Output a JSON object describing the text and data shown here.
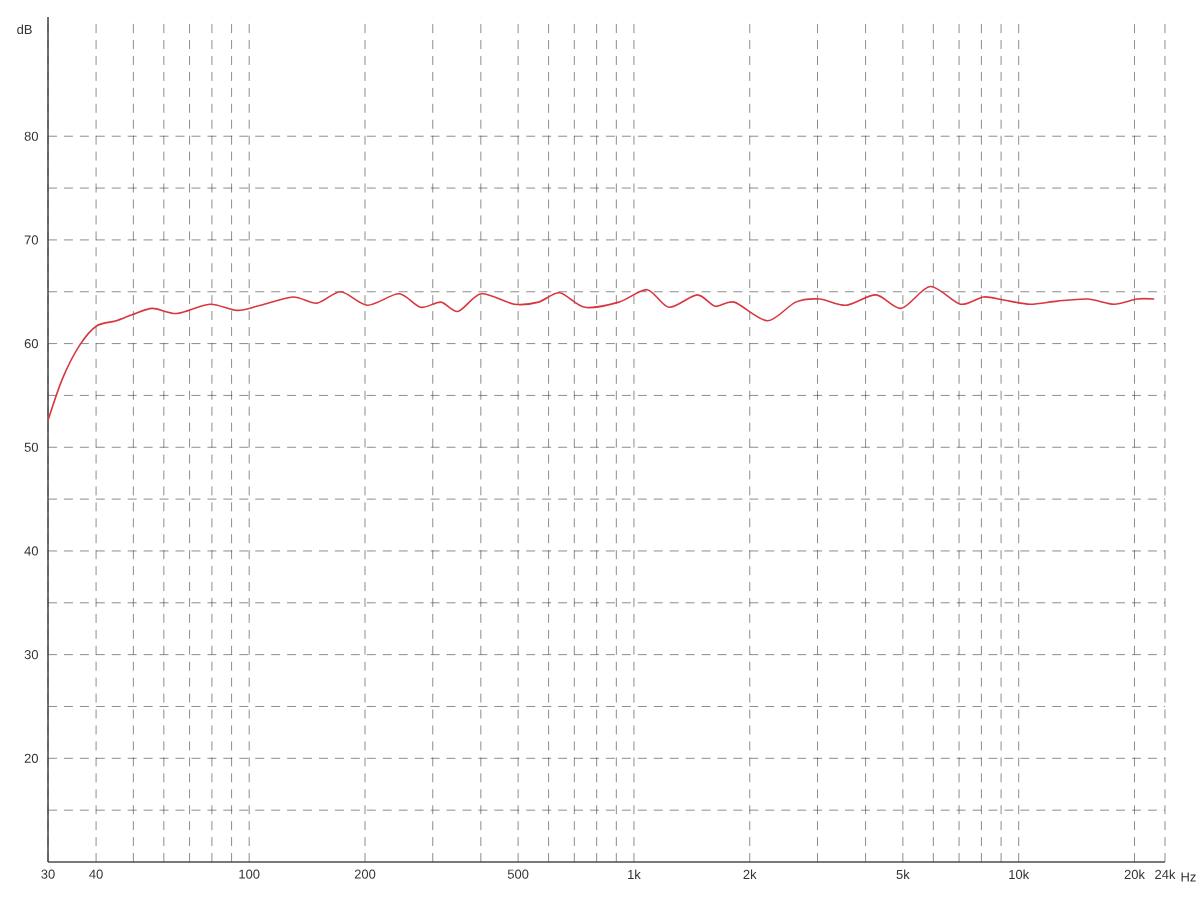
{
  "chart_data": {
    "type": "line",
    "xlabel": "Hz",
    "ylabel": "dB",
    "log": "x",
    "grid": true,
    "xlim": [
      30,
      24000
    ],
    "ylim": [
      10,
      91.5
    ],
    "xticks": [
      30,
      40,
      {
        "value": 50,
        "label": null
      },
      {
        "value": 60,
        "label": null
      },
      {
        "value": 70,
        "label": null
      },
      {
        "value": 80,
        "label": null
      },
      {
        "value": 90,
        "label": null
      },
      100,
      200,
      {
        "value": 300,
        "label": null
      },
      {
        "value": 400,
        "label": null
      },
      500,
      {
        "value": 600,
        "label": null
      },
      {
        "value": 700,
        "label": null
      },
      {
        "value": 800,
        "label": null
      },
      {
        "value": 900,
        "label": null
      },
      {
        "value": 1000,
        "label": "1k"
      },
      {
        "value": 2000,
        "label": "2k"
      },
      {
        "value": 3000,
        "label": null
      },
      {
        "value": 4000,
        "label": null
      },
      {
        "value": 5000,
        "label": "5k"
      },
      {
        "value": 6000,
        "label": null
      },
      {
        "value": 7000,
        "label": null
      },
      {
        "value": 8000,
        "label": null
      },
      {
        "value": 9000,
        "label": null
      },
      {
        "value": 10000,
        "label": "10k"
      },
      {
        "value": 20000,
        "label": "20k"
      },
      {
        "value": 24000,
        "label": "24k"
      }
    ],
    "yticks": [
      {
        "value": 15,
        "label": null
      },
      20,
      {
        "value": 25,
        "label": null
      },
      30,
      {
        "value": 35,
        "label": null
      },
      40,
      {
        "value": 45,
        "label": null
      },
      50,
      {
        "value": 55,
        "label": null
      },
      60,
      {
        "value": 65,
        "label": null
      },
      70,
      {
        "value": 75,
        "label": null
      },
      80
    ],
    "x": [
      30,
      32.7,
      36.2,
      40.1,
      45.2,
      49.8,
      56,
      64.9,
      79,
      93,
      107,
      130,
      150,
      173,
      203,
      245,
      279,
      315,
      349,
      401,
      489,
      565,
      641,
      745,
      914,
      1082,
      1234,
      1460,
      1627,
      1823,
      2224,
      2631,
      3040,
      3558,
      4257,
      4953,
      5891,
      7058,
      8103,
      9146,
      10700,
      12600,
      15100,
      17700,
      20300,
      22500
    ],
    "series": [
      {
        "color": "#d9363e",
        "values": [
          52.6,
          56.6,
          59.8,
          61.7,
          62.2,
          62.8,
          63.4,
          62.9,
          63.8,
          63.2,
          63.7,
          64.5,
          63.9,
          65.0,
          63.7,
          64.8,
          63.5,
          64.0,
          63.1,
          64.8,
          63.8,
          64.0,
          64.9,
          63.5,
          64.0,
          65.2,
          63.5,
          64.7,
          63.6,
          64.0,
          62.2,
          64.0,
          64.3,
          63.7,
          64.7,
          63.4,
          65.5,
          63.8,
          64.5,
          64.2,
          63.8,
          64.1,
          64.3,
          63.8,
          64.3,
          64.3
        ]
      }
    ]
  }
}
